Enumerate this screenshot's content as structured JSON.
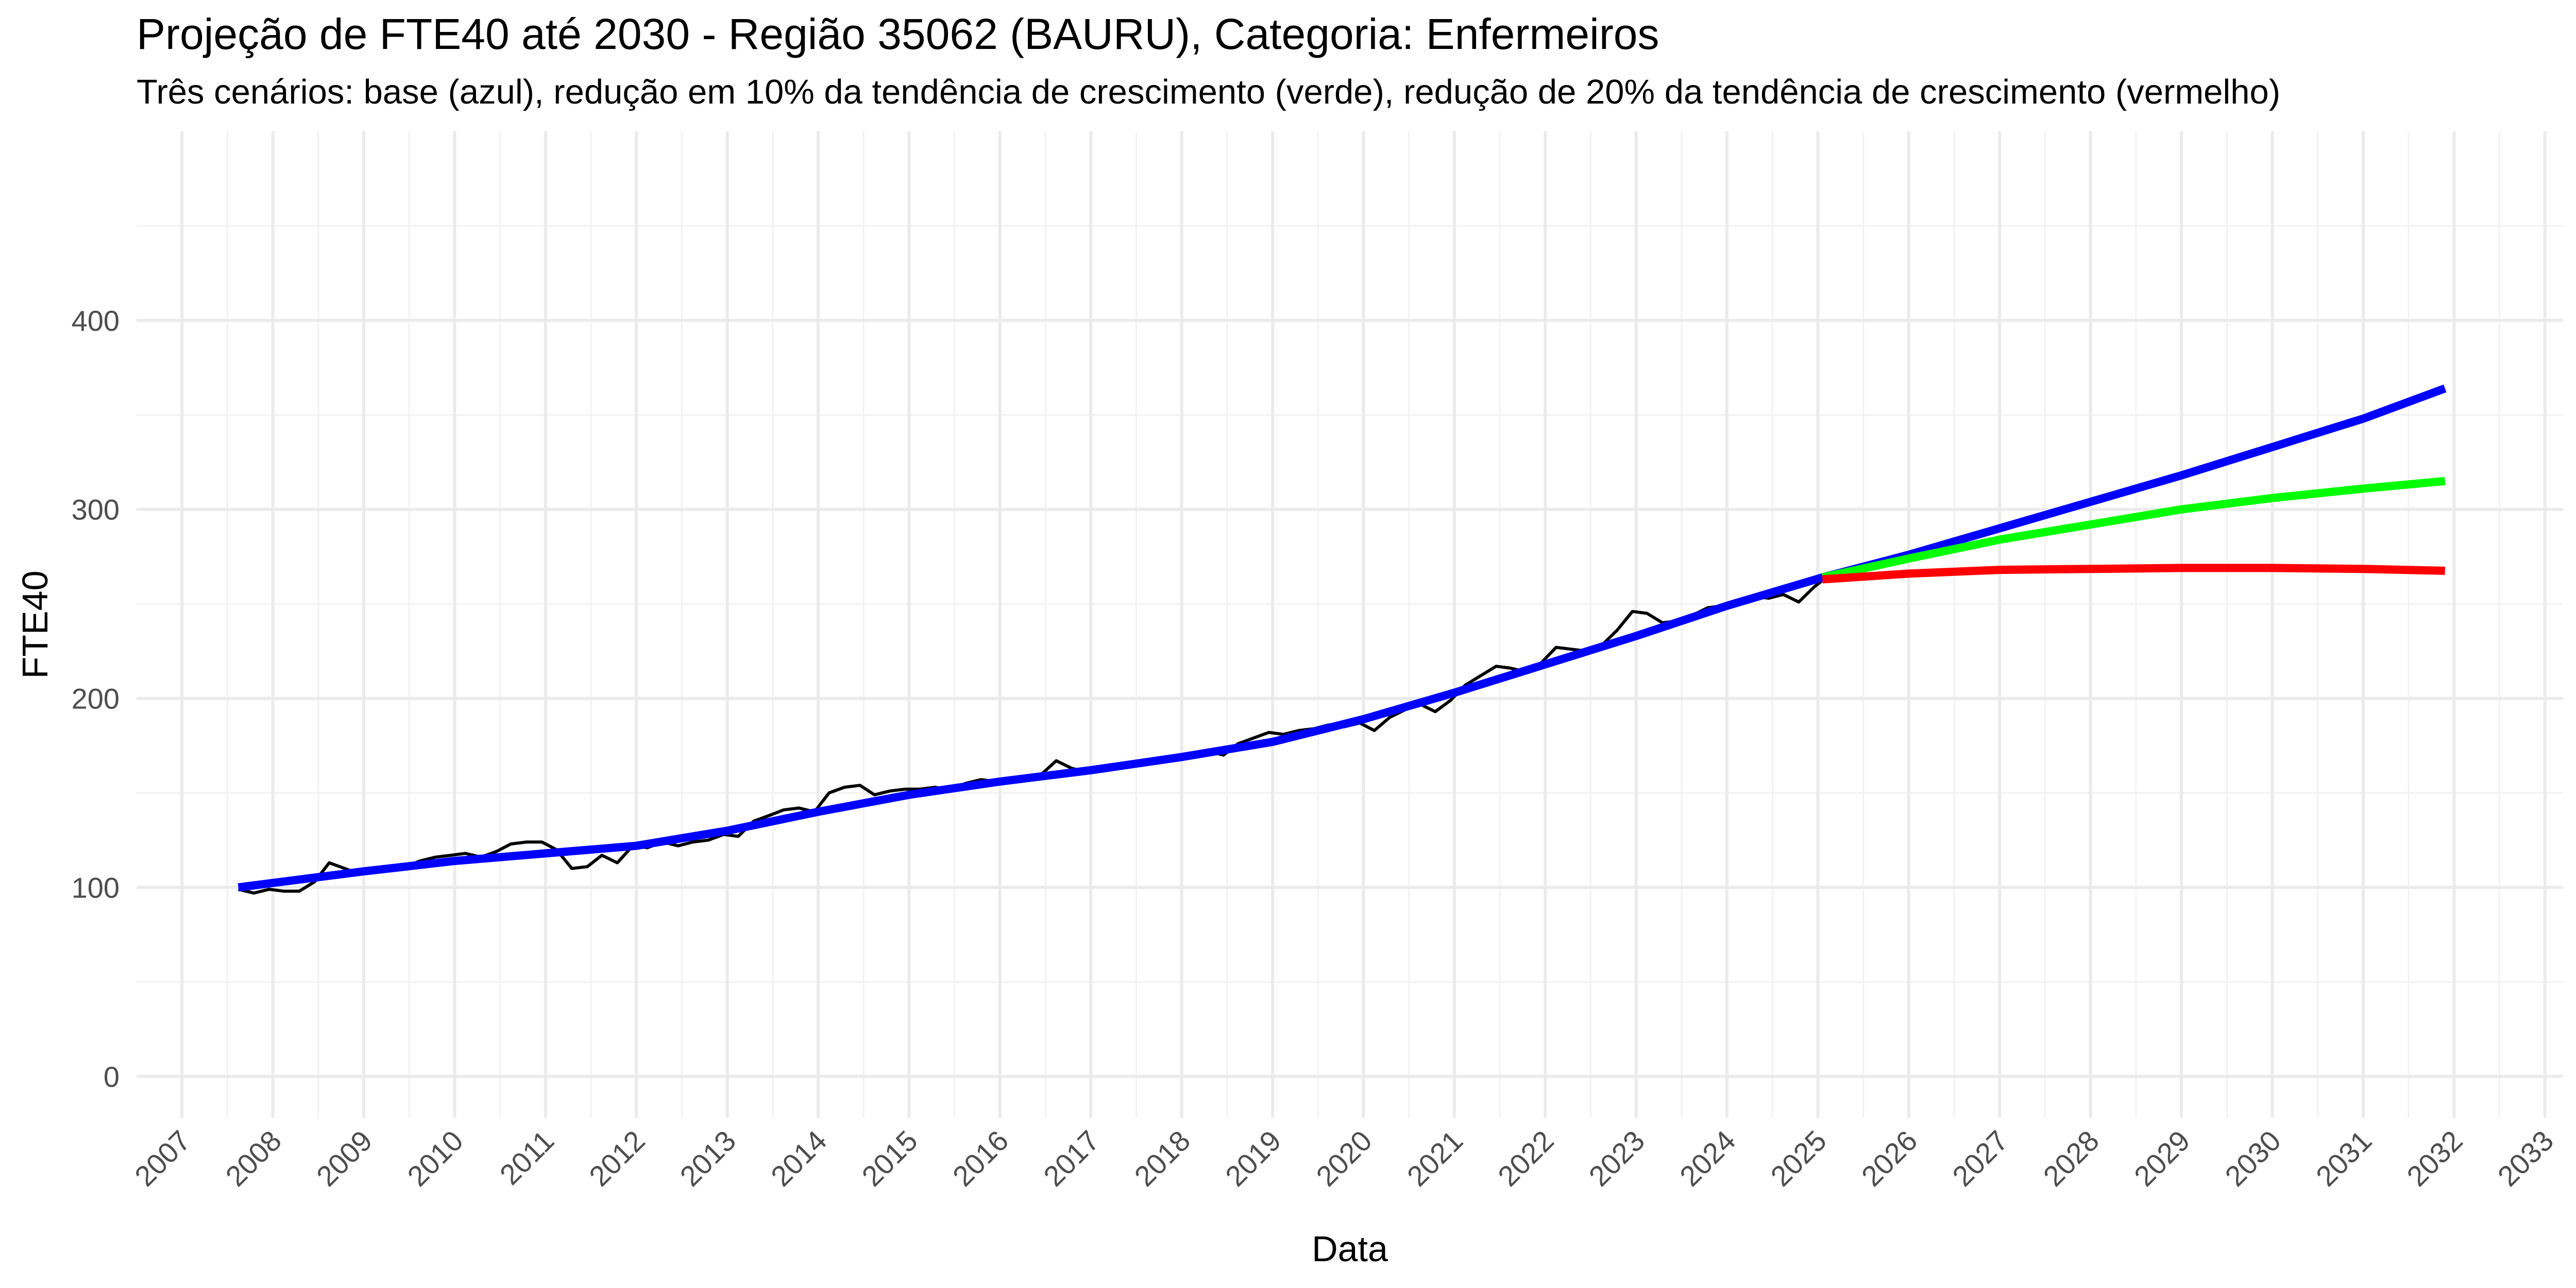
{
  "chart_data": {
    "type": "line",
    "title": "Projeção de FTE40 até 2030 - Região 35062 (BAURU), Categoria: Enfermeiros",
    "subtitle": "Três cenários: base (azul), redução em 10% da tendência de crescimento (verde), redução de 20% da tendência de crescimento (vermelho)",
    "xlabel": "Data",
    "ylabel": "FTE40",
    "xlim": [
      2006.5,
      2033.2
    ],
    "ylim": [
      -22,
      500
    ],
    "grid": true,
    "legend": "none",
    "x_ticks": [
      "2007",
      "2008",
      "2009",
      "2010",
      "2011",
      "2012",
      "2013",
      "2014",
      "2015",
      "2016",
      "2017",
      "2018",
      "2019",
      "2020",
      "2021",
      "2022",
      "2023",
      "2024",
      "2025",
      "2026",
      "2027",
      "2028",
      "2029",
      "2030",
      "2031",
      "2032",
      "2033"
    ],
    "y_ticks": [
      0,
      100,
      200,
      300,
      400
    ],
    "series": [
      {
        "color": "#000000",
        "x": [
          2007.62,
          2007.79,
          2007.96,
          2008.12,
          2008.29,
          2008.46,
          2008.62,
          2008.79,
          2008.96,
          2009.12,
          2009.29,
          2009.46,
          2009.62,
          2009.79,
          2009.96,
          2010.12,
          2010.29,
          2010.46,
          2010.62,
          2010.79,
          2010.96,
          2011.04,
          2011.12,
          2011.29,
          2011.46,
          2011.62,
          2011.79,
          2011.96,
          2012.12,
          2012.29,
          2012.46,
          2012.62,
          2012.79,
          2012.96,
          2013.12,
          2013.29,
          2013.46,
          2013.62,
          2013.79,
          2013.96,
          2014.12,
          2014.29,
          2014.46,
          2014.62,
          2014.79,
          2014.96,
          2015.12,
          2015.29,
          2015.46,
          2015.62,
          2015.79,
          2015.96,
          2016.12,
          2016.29,
          2016.46,
          2016.62,
          2016.79,
          2016.96,
          2017.12,
          2017.29,
          2017.46,
          2017.62,
          2017.79,
          2017.96,
          2018.12,
          2018.29,
          2018.46,
          2018.62,
          2018.79,
          2018.96,
          2019.12,
          2019.29,
          2019.46,
          2019.62,
          2019.79,
          2019.96,
          2020.12,
          2020.29,
          2020.46,
          2020.62,
          2020.79,
          2020.96,
          2021.12,
          2021.29,
          2021.46,
          2021.62,
          2021.79,
          2021.96,
          2022.12,
          2022.29,
          2022.46,
          2022.62,
          2022.79,
          2022.96,
          2023.12,
          2023.29,
          2023.46,
          2023.62,
          2023.79,
          2023.96,
          2024.12,
          2024.29,
          2024.46,
          2024.62,
          2024.79,
          2024.96,
          2025.04
        ],
        "values": [
          99,
          97,
          99,
          98,
          98,
          103,
          113,
          110,
          107,
          108,
          109,
          111,
          114,
          116,
          117,
          118,
          116,
          119,
          123,
          124,
          124,
          122,
          120,
          110,
          111,
          117,
          113,
          122,
          121,
          124,
          122,
          124,
          125,
          128,
          127,
          135,
          138,
          141,
          142,
          140,
          150,
          153,
          154,
          149,
          151,
          152,
          152,
          153,
          151,
          155,
          157,
          156,
          157,
          159,
          160,
          167,
          163,
          161,
          162,
          165,
          166,
          166,
          167,
          168,
          170,
          172,
          170,
          176,
          179,
          182,
          181,
          183,
          184,
          186,
          185,
          187,
          183,
          190,
          194,
          197,
          193,
          199,
          207,
          212,
          217,
          216,
          214,
          219,
          227,
          226,
          225,
          228,
          236,
          246,
          245,
          240,
          241,
          244,
          248,
          249,
          250,
          254,
          253,
          255,
          251,
          259,
          262
        ]
      },
      {
        "color": "#0000ff",
        "x": [
          2007.62,
          2009,
          2010,
          2011,
          2012,
          2013,
          2014,
          2015,
          2016,
          2017,
          2018,
          2019,
          2020,
          2021,
          2022,
          2023,
          2024,
          2025.05,
          2026,
          2027,
          2028,
          2029,
          2030,
          2031,
          2031.9
        ],
        "values": [
          100,
          108.5,
          114,
          118,
          122,
          130,
          140,
          149,
          156,
          162,
          169,
          177,
          189,
          203,
          218,
          233,
          249,
          264,
          276,
          290,
          304,
          318,
          333,
          348,
          364
        ]
      },
      {
        "color": "#00ff00",
        "x": [
          2025.05,
          2026,
          2027,
          2028,
          2029,
          2030,
          2031,
          2031.9
        ],
        "values": [
          264,
          274,
          284,
          292,
          300,
          306,
          311,
          315
        ]
      },
      {
        "color": "#ff0000",
        "x": [
          2025.05,
          2026,
          2027,
          2028,
          2029,
          2030,
          2031,
          2031.9
        ],
        "values": [
          263,
          266,
          268,
          268.5,
          269,
          269,
          268.5,
          267.5
        ]
      }
    ]
  }
}
